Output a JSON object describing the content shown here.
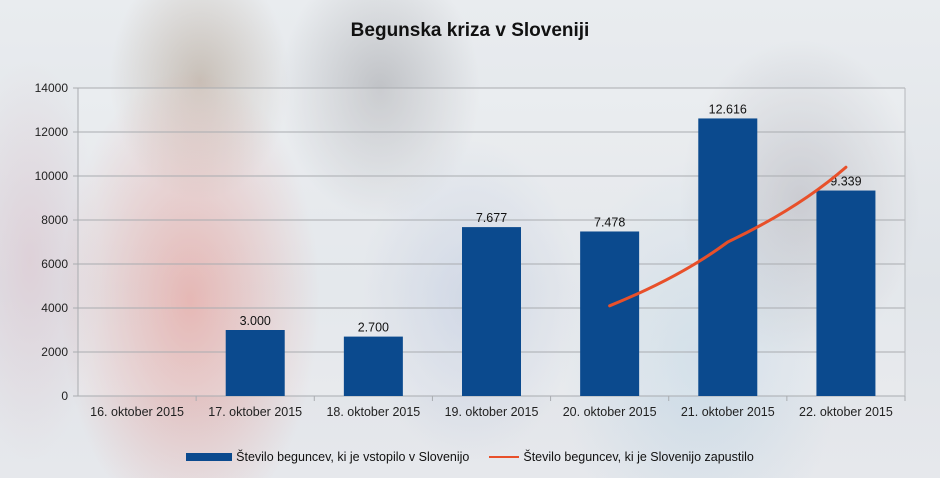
{
  "chart_data": {
    "type": "bar",
    "title": "Begunska kriza v Sloveniji",
    "xlabel": "",
    "ylabel": "",
    "ylim": [
      0,
      14000
    ],
    "yticks": [
      0,
      2000,
      4000,
      6000,
      8000,
      10000,
      12000,
      14000
    ],
    "grid": true,
    "legend_position": "bottom",
    "categories": [
      "16. oktober 2015",
      "17. oktober 2015",
      "18. oktober 2015",
      "19. oktober 2015",
      "20. oktober 2015",
      "21. oktober 2015",
      "22. oktober 2015"
    ],
    "series": [
      {
        "name": "Število beguncev, ki je vstopilo v Slovenijo",
        "type": "bar",
        "color": "#0b4a8e",
        "values": [
          null,
          3000,
          2700,
          7677,
          7478,
          12616,
          9339
        ],
        "labels": [
          "",
          "3.000",
          "2.700",
          "7.677",
          "7.478",
          "12.616",
          "9.339"
        ]
      },
      {
        "name": "Število beguncev, ki je Slovenijo zapustilo",
        "type": "line",
        "color": "#e8502a",
        "values": [
          null,
          null,
          null,
          null,
          4100,
          7000,
          10400
        ]
      }
    ]
  },
  "legend": {
    "items": [
      {
        "label": "Število beguncev, ki je vstopilo v Slovenijo",
        "color": "#0b4a8e"
      },
      {
        "label": "Število beguncev, ki je Slovenijo zapustilo",
        "color": "#e8502a"
      }
    ]
  }
}
